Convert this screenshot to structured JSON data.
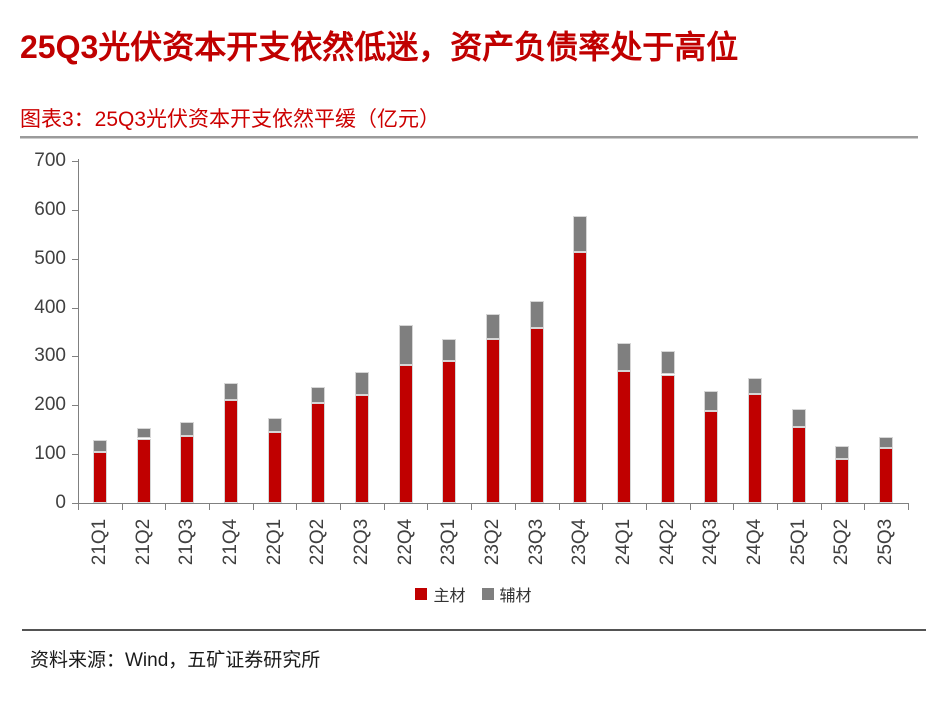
{
  "header": {
    "title": "25Q3光伏资本开支依然低迷，资产负债率处于高位"
  },
  "figure": {
    "caption": "图表3：25Q3光伏资本开支依然平缓（亿元）"
  },
  "footer": {
    "source": "资料来源：Wind，五矿证券研究所"
  },
  "colors": {
    "title_red": "#C00000",
    "caption_red": "#CC0000",
    "bar_main_red": "#C00000",
    "bar_aux_gray": "#7F7F7F",
    "axis_gray": "#808080",
    "tick_label_gray": "#404040"
  },
  "chart_data": {
    "type": "bar",
    "stacked": true,
    "title": "25Q3光伏资本开支依然平缓（亿元）",
    "unit": "亿元",
    "xlabel": "",
    "ylabel": "",
    "ylim": [
      0,
      700
    ],
    "ytick_step": 100,
    "yticks": [
      0,
      100,
      200,
      300,
      400,
      500,
      600,
      700
    ],
    "grid": false,
    "legend_position": "bottom",
    "categories": [
      "21Q1",
      "21Q2",
      "21Q3",
      "21Q4",
      "22Q1",
      "22Q2",
      "22Q3",
      "22Q4",
      "23Q1",
      "23Q2",
      "23Q3",
      "23Q4",
      "24Q1",
      "24Q2",
      "24Q3",
      "24Q4",
      "25Q1",
      "25Q2",
      "25Q3"
    ],
    "series": [
      {
        "name": "主材",
        "color": "#C00000",
        "values": [
          105,
          132,
          138,
          210,
          146,
          204,
          221,
          283,
          291,
          336,
          359,
          513,
          271,
          263,
          188,
          224,
          155,
          90,
          113
        ]
      },
      {
        "name": "辅材",
        "color": "#7F7F7F",
        "values": [
          24,
          22,
          28,
          35,
          27,
          34,
          48,
          81,
          44,
          50,
          54,
          75,
          57,
          48,
          41,
          31,
          38,
          26,
          23
        ]
      }
    ],
    "totals": [
      129,
      154,
      166,
      245,
      173,
      238,
      269,
      364,
      335,
      386,
      413,
      588,
      328,
      311,
      229,
      255,
      193,
      116,
      136
    ]
  }
}
